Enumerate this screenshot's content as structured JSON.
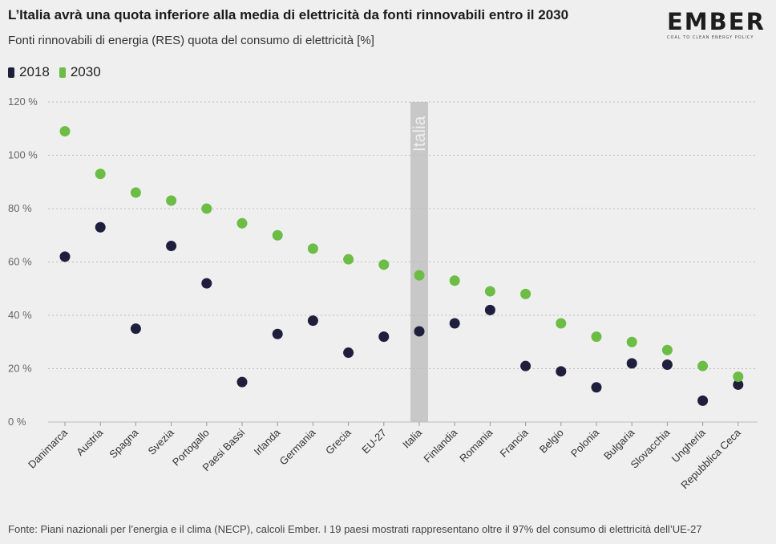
{
  "header": {
    "title": "L’Italia avrà una quota inferiore alla media di elettricità da fonti rinnovabili entro il 2030",
    "subtitle": "Fonti rinnovabili di energia (RES) quota del consumo di elettricità [%]"
  },
  "logo": {
    "wordmark": "EMBER",
    "tagline": "COAL TO CLEAN ENERGY POLICY"
  },
  "footer": {
    "source": "Fonte: Piani nazionali per l’energia e il clima (NECP), calcoli Ember. I 19 paesi mostrati rappresentano oltre il 97% del consumo di elettricità dell’UE-27"
  },
  "colors": {
    "series_2018": "#1f1f3d",
    "series_2030": "#6cbd45",
    "highlight_band": "#c8c8c8",
    "grid": "#bdbdbd"
  },
  "chart_data": {
    "type": "scatter",
    "title": "L’Italia avrà una quota inferiore alla media di elettricità da fonti rinnovabili entro il 2030",
    "ylabel": "",
    "xlabel": "",
    "ylim": [
      0,
      120
    ],
    "yticks": [
      0,
      20,
      40,
      60,
      80,
      100,
      120
    ],
    "ytick_labels": [
      "0 %",
      "20 %",
      "40 %",
      "60 %",
      "80 %",
      "100 %",
      "120 %"
    ],
    "grid": "horizontal dashed",
    "legend_position": "top-left",
    "highlight": {
      "category": "Italia",
      "label": "Italia"
    },
    "categories": [
      "Danimarca",
      "Austria",
      "Spagna",
      "Svezia",
      "Portogallo",
      "Paesi Bassi",
      "Irlanda",
      "Germania",
      "Grecia",
      "EU-27",
      "Italia",
      "Finlandia",
      "Romania",
      "Francia",
      "Belgio",
      "Polonia",
      "Bulgaria",
      "Slovacchia",
      "Ungheria",
      "Repubblica Ceca"
    ],
    "series": [
      {
        "name": "2018",
        "color": "#1f1f3d",
        "values": [
          62,
          73,
          35,
          66,
          52,
          15,
          33,
          38,
          26,
          32,
          34,
          37,
          42,
          21,
          19,
          13,
          22,
          21.5,
          8,
          14
        ]
      },
      {
        "name": "2030",
        "color": "#6cbd45",
        "values": [
          109,
          93,
          86,
          83,
          80,
          74.5,
          70,
          65,
          61,
          59,
          55,
          53,
          49,
          48,
          37,
          32,
          30,
          27,
          21,
          17
        ]
      }
    ]
  }
}
